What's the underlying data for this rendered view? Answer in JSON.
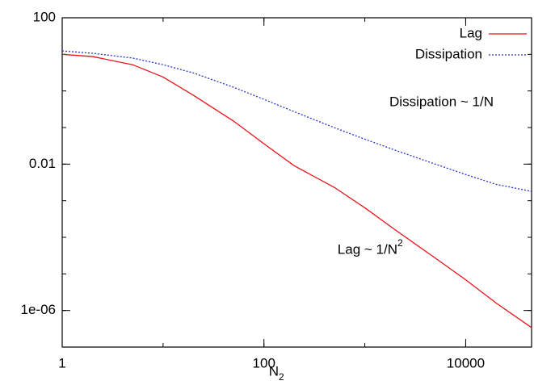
{
  "chart_data": {
    "type": "line",
    "log_x": true,
    "log_y": true,
    "xlabel": "N",
    "xlabel_sub": "2",
    "x": [
      1,
      2,
      5,
      10,
      20,
      50,
      100,
      200,
      500,
      1000,
      2000,
      5000,
      10000,
      20000,
      45000
    ],
    "series": [
      {
        "name": "Lag",
        "color": "#e8121a",
        "dash": "solid",
        "values": [
          10,
          8.7,
          5.2,
          2.4,
          0.76,
          0.15,
          0.036,
          0.009,
          0.0023,
          0.00064,
          0.00016,
          2.7e-05,
          6.9e-06,
          1.6e-06,
          3.4e-07
        ]
      },
      {
        "name": "Dissipation",
        "color": "#2435c8",
        "dash": "dotted",
        "values": [
          12.4,
          10.7,
          7.9,
          5.2,
          3.1,
          1.26,
          0.59,
          0.27,
          0.099,
          0.048,
          0.024,
          0.01,
          0.0052,
          0.0028,
          0.0018
        ]
      }
    ],
    "xlim": [
      1,
      45000
    ],
    "xticks": [
      1,
      100,
      10000
    ],
    "ylim": [
      1e-07,
      100
    ],
    "yticks": [
      100,
      0.01,
      {
        "value": 1e-06,
        "label": "1e-06"
      }
    ],
    "legend": "top-right",
    "annotations": [
      {
        "text": "Dissipation ~ 1/N"
      },
      {
        "text": "Lag ~ 1/N",
        "sup": "2"
      }
    ]
  }
}
